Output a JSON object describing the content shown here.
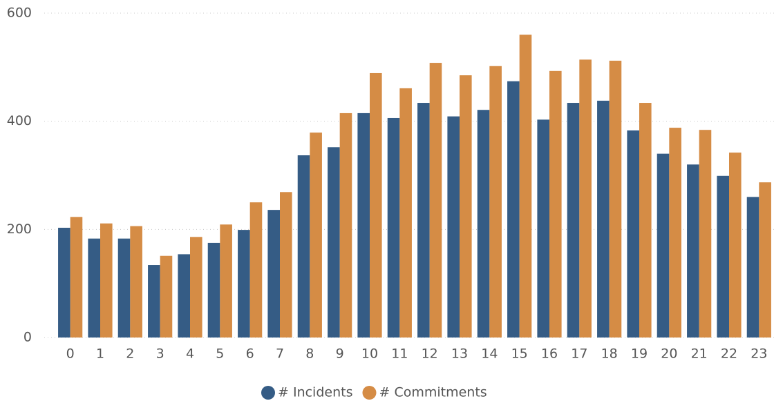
{
  "chart_data": {
    "type": "bar",
    "categories": [
      0,
      1,
      2,
      3,
      4,
      5,
      6,
      7,
      8,
      9,
      10,
      11,
      12,
      13,
      14,
      15,
      16,
      17,
      18,
      19,
      20,
      21,
      22,
      23
    ],
    "series": [
      {
        "name": "# Incidents",
        "color": "#355c85",
        "values": [
          203,
          183,
          183,
          134,
          154,
          175,
          199,
          236,
          337,
          352,
          415,
          406,
          434,
          409,
          421,
          474,
          403,
          434,
          438,
          383,
          340,
          320,
          299,
          260
        ]
      },
      {
        "name": "# Commitments",
        "color": "#d58c45",
        "values": [
          223,
          211,
          206,
          151,
          186,
          209,
          250,
          269,
          379,
          415,
          489,
          461,
          508,
          485,
          502,
          560,
          493,
          514,
          512,
          434,
          388,
          384,
          342,
          287
        ]
      }
    ],
    "ylim": [
      0,
      600
    ],
    "yticks": [
      0,
      200,
      400,
      600
    ],
    "grid": true,
    "legend": "bottom"
  }
}
